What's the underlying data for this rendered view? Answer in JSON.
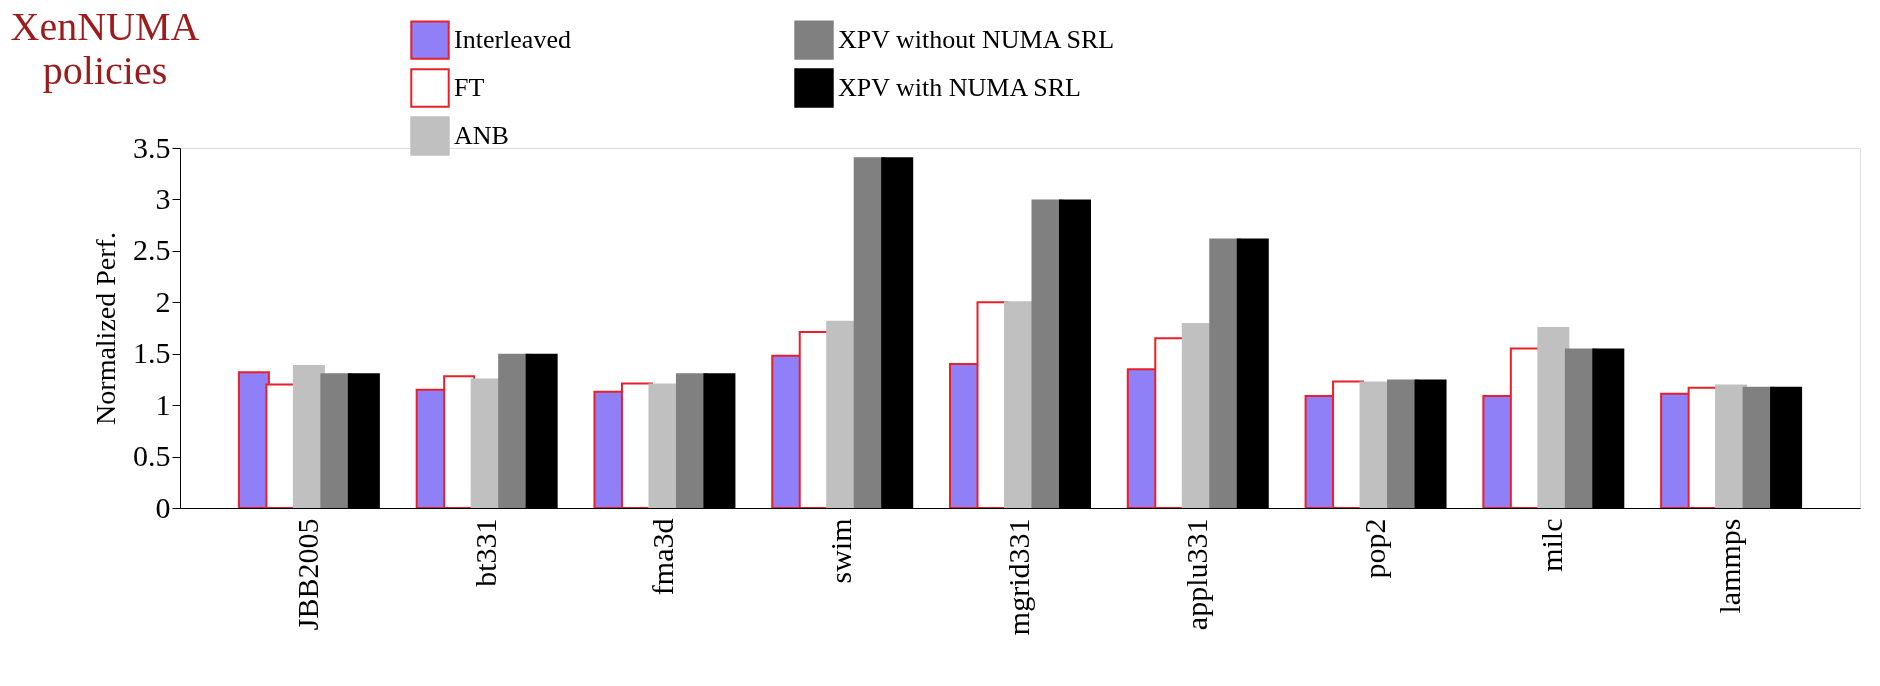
{
  "chart_data": {
    "type": "bar",
    "ylabel": "Normalized Perf.",
    "categories": [
      "JBB2005",
      "bt331",
      "fma3d",
      "swim",
      "mgrid331",
      "applu331",
      "pop2",
      "milc",
      "lammps"
    ],
    "series": [
      {
        "name": "Interleaved",
        "color": "#9080f8",
        "values": [
          1.32,
          1.15,
          1.13,
          1.48,
          1.4,
          1.35,
          1.09,
          1.09,
          1.11
        ]
      },
      {
        "name": "FT",
        "color": "#ffffff",
        "values": [
          1.2,
          1.28,
          1.21,
          1.71,
          2.0,
          1.65,
          1.23,
          1.55,
          1.17
        ]
      },
      {
        "name": "ANB",
        "color": "#c0c0c0",
        "values": [
          1.38,
          1.25,
          1.2,
          1.81,
          2.0,
          1.79,
          1.22,
          1.75,
          1.19
        ]
      },
      {
        "name": "XPV without NUMA SRL",
        "color": "#808080",
        "values": [
          1.3,
          1.49,
          1.3,
          3.4,
          2.99,
          2.61,
          1.24,
          1.54,
          1.17
        ]
      },
      {
        "name": "XPV with NUMA SRL",
        "color": "#000000",
        "values": [
          1.3,
          1.49,
          1.3,
          3.4,
          2.99,
          2.61,
          1.24,
          1.54,
          1.17
        ]
      }
    ],
    "ylim": [
      0,
      3.5
    ],
    "yticks": [
      0,
      0.5,
      1,
      1.5,
      2,
      2.5,
      3,
      3.5
    ],
    "legend": "top",
    "grid": false,
    "annotations": [
      "XenNUMA policies"
    ]
  }
}
